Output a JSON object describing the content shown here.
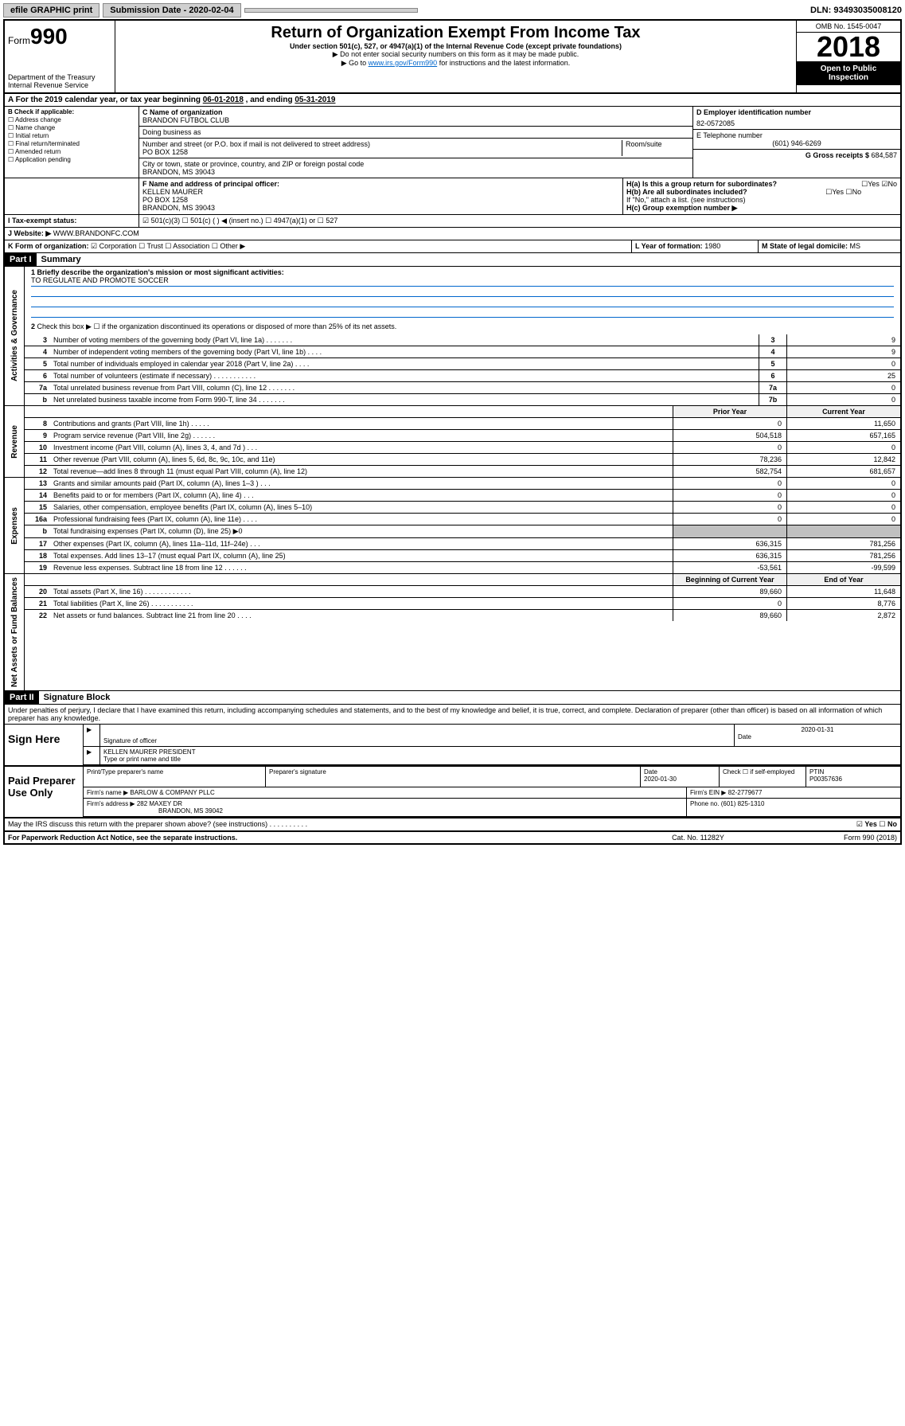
{
  "topbar": {
    "efile": "efile GRAPHIC print",
    "submission_label": "Submission Date - 2020-02-04",
    "dln": "DLN: 93493035008120"
  },
  "header": {
    "form_prefix": "Form",
    "form_num": "990",
    "dept": "Department of the Treasury Internal Revenue Service",
    "title": "Return of Organization Exempt From Income Tax",
    "subtitle": "Under section 501(c), 527, or 4947(a)(1) of the Internal Revenue Code (except private foundations)",
    "instr1": "▶ Do not enter social security numbers on this form as it may be made public.",
    "instr2_pre": "▶ Go to ",
    "instr2_link": "www.irs.gov/Form990",
    "instr2_post": " for instructions and the latest information.",
    "omb": "OMB No. 1545-0047",
    "year": "2018",
    "open": "Open to Public Inspection"
  },
  "period": {
    "label_a": "A For the 2019 calendar year, or tax year beginning ",
    "begin": "06-01-2018",
    "mid": " , and ending ",
    "end": "05-31-2019"
  },
  "section_b": {
    "header": "B Check if applicable:",
    "items": [
      "Address change",
      "Name change",
      "Initial return",
      "Final return/terminated",
      "Amended return",
      "Application pending"
    ]
  },
  "section_c": {
    "label_name": "C Name of organization",
    "org_name": "BRANDON FUTBOL CLUB",
    "dba_label": "Doing business as",
    "addr_label": "Number and street (or P.O. box if mail is not delivered to street address)",
    "room_label": "Room/suite",
    "address": "PO BOX 1258",
    "city_label": "City or town, state or province, country, and ZIP or foreign postal code",
    "city": "BRANDON, MS  39043"
  },
  "section_de": {
    "d_label": "D Employer identification number",
    "ein": "82-0572085",
    "e_label": "E Telephone number",
    "phone": "(601) 946-6269",
    "g_label": "G Gross receipts $ ",
    "gross": "684,587"
  },
  "section_f": {
    "label": "F Name and address of principal officer:",
    "name": "KELLEN MAURER",
    "addr1": "PO BOX 1258",
    "addr2": "BRANDON, MS  39043"
  },
  "section_h": {
    "ha": "H(a)  Is this a group return for subordinates?",
    "hb": "H(b)  Are all subordinates included?",
    "hb_note": "If \"No,\" attach a list. (see instructions)",
    "hc": "H(c)  Group exemption number ▶",
    "yes": "Yes",
    "no": "No"
  },
  "tax_status": {
    "label": "Tax-exempt status:",
    "opt1": "501(c)(3)",
    "opt2": "501(c) (   ) ◀ (insert no.)",
    "opt3": "4947(a)(1) or",
    "opt4": "527"
  },
  "website": {
    "label": "J   Website: ▶",
    "value": "WWW.BRANDONFC.COM"
  },
  "section_k": {
    "label": "K Form of organization:",
    "corp": "Corporation",
    "trust": "Trust",
    "assoc": "Association",
    "other": "Other ▶"
  },
  "section_l": {
    "label": "L Year of formation: ",
    "value": "1980"
  },
  "section_m": {
    "label": "M State of legal domicile: ",
    "value": "MS"
  },
  "part1": {
    "tab": "Part I",
    "title": "Summary",
    "line1_label": "1  Briefly describe the organization's mission or most significant activities:",
    "mission": "TO REGULATE AND PROMOTE SOCCER",
    "line2": "Check this box ▶ ☐  if the organization discontinued its operations or disposed of more than 25% of its net assets.",
    "vlabel_ag": "Activities & Governance",
    "vlabel_rev": "Revenue",
    "vlabel_exp": "Expenses",
    "vlabel_net": "Net Assets or Fund Balances",
    "hdr_prior": "Prior Year",
    "hdr_current": "Current Year",
    "hdr_begin": "Beginning of Current Year",
    "hdr_end": "End of Year"
  },
  "lines_ag": [
    {
      "n": "3",
      "d": "Number of voting members of the governing body (Part VI, line 1a)  .   .   .   .   .   .   .",
      "box": "3",
      "v": "9"
    },
    {
      "n": "4",
      "d": "Number of independent voting members of the governing body (Part VI, line 1b)   .   .   .   .",
      "box": "4",
      "v": "9"
    },
    {
      "n": "5",
      "d": "Total number of individuals employed in calendar year 2018 (Part V, line 2a)   .   .   .   .",
      "box": "5",
      "v": "0"
    },
    {
      "n": "6",
      "d": "Total number of volunteers (estimate if necessary)   .   .   .   .   .   .   .   .   .   .   .",
      "box": "6",
      "v": "25"
    },
    {
      "n": "7a",
      "d": "Total unrelated business revenue from Part VIII, column (C), line 12   .   .   .   .   .   .   .",
      "box": "7a",
      "v": "0"
    },
    {
      "n": "b",
      "d": "Net unrelated business taxable income from Form 990-T, line 34   .   .   .   .   .   .   .",
      "box": "7b",
      "v": "0"
    }
  ],
  "lines_rev": [
    {
      "n": "8",
      "d": "Contributions and grants (Part VIII, line 1h)   .   .   .   .   .",
      "p": "0",
      "c": "11,650"
    },
    {
      "n": "9",
      "d": "Program service revenue (Part VIII, line 2g)   .   .   .   .   .   .",
      "p": "504,518",
      "c": "657,165"
    },
    {
      "n": "10",
      "d": "Investment income (Part VIII, column (A), lines 3, 4, and 7d )   .   .   .",
      "p": "0",
      "c": "0"
    },
    {
      "n": "11",
      "d": "Other revenue (Part VIII, column (A), lines 5, 6d, 8c, 9c, 10c, and 11e)",
      "p": "78,236",
      "c": "12,842"
    },
    {
      "n": "12",
      "d": "Total revenue—add lines 8 through 11 (must equal Part VIII, column (A), line 12)",
      "p": "582,754",
      "c": "681,657"
    }
  ],
  "lines_exp": [
    {
      "n": "13",
      "d": "Grants and similar amounts paid (Part IX, column (A), lines 1–3 )   .   .   .",
      "p": "0",
      "c": "0"
    },
    {
      "n": "14",
      "d": "Benefits paid to or for members (Part IX, column (A), line 4)   .   .   .",
      "p": "0",
      "c": "0"
    },
    {
      "n": "15",
      "d": "Salaries, other compensation, employee benefits (Part IX, column (A), lines 5–10)",
      "p": "0",
      "c": "0"
    },
    {
      "n": "16a",
      "d": "Professional fundraising fees (Part IX, column (A), line 11e)   .   .   .   .",
      "p": "0",
      "c": "0"
    },
    {
      "n": "b",
      "d": "Total fundraising expenses (Part IX, column (D), line 25) ▶0",
      "p": "",
      "c": "",
      "shaded": true
    },
    {
      "n": "17",
      "d": "Other expenses (Part IX, column (A), lines 11a–11d, 11f–24e)   .   .   .",
      "p": "636,315",
      "c": "781,256"
    },
    {
      "n": "18",
      "d": "Total expenses. Add lines 13–17 (must equal Part IX, column (A), line 25)",
      "p": "636,315",
      "c": "781,256"
    },
    {
      "n": "19",
      "d": "Revenue less expenses. Subtract line 18 from line 12   .   .   .   .   .   .",
      "p": "-53,561",
      "c": "-99,599"
    }
  ],
  "lines_net": [
    {
      "n": "20",
      "d": "Total assets (Part X, line 16)   .   .   .   .   .   .   .   .   .   .   .   .",
      "p": "89,660",
      "c": "11,648"
    },
    {
      "n": "21",
      "d": "Total liabilities (Part X, line 26)   .   .   .   .   .   .   .   .   .   .   .",
      "p": "0",
      "c": "8,776"
    },
    {
      "n": "22",
      "d": "Net assets or fund balances. Subtract line 21 from line 20   .   .   .   .",
      "p": "89,660",
      "c": "2,872"
    }
  ],
  "part2": {
    "tab": "Part II",
    "title": "Signature Block",
    "perjury": "Under penalties of perjury, I declare that I have examined this return, including accompanying schedules and statements, and to the best of my knowledge and belief, it is true, correct, and complete. Declaration of preparer (other than officer) is based on all information of which preparer has any knowledge."
  },
  "sign": {
    "label": "Sign Here",
    "sig_officer": "Signature of officer",
    "date": "2020-01-31",
    "date_label": "Date",
    "name_title": "KELLEN MAURER  PRESIDENT",
    "type_label": "Type or print name and title"
  },
  "preparer": {
    "label": "Paid Preparer Use Only",
    "print_label": "Print/Type preparer's name",
    "sig_label": "Preparer's signature",
    "date_label": "Date",
    "date": "2020-01-30",
    "check_label": "Check ☐ if self-employed",
    "ptin_label": "PTIN",
    "ptin": "P00357636",
    "firm_name_label": "Firm's name    ▶",
    "firm_name": "BARLOW & COMPANY PLLC",
    "firm_ein_label": "Firm's EIN ▶ ",
    "firm_ein": "82-2779677",
    "firm_addr_label": "Firm's address ▶",
    "firm_addr": "282 MAXEY DR",
    "firm_city": "BRANDON, MS  39042",
    "phone_label": "Phone no. ",
    "phone": "(601) 825-1310"
  },
  "footer": {
    "discuss": "May the IRS discuss this return with the preparer shown above? (see instructions)   .   .   .   .   .   .   .   .   .   .",
    "yes": "Yes",
    "no": "No",
    "paperwork": "For Paperwork Reduction Act Notice, see the separate instructions.",
    "cat": "Cat. No. 11282Y",
    "form": "Form 990 (2018)"
  }
}
